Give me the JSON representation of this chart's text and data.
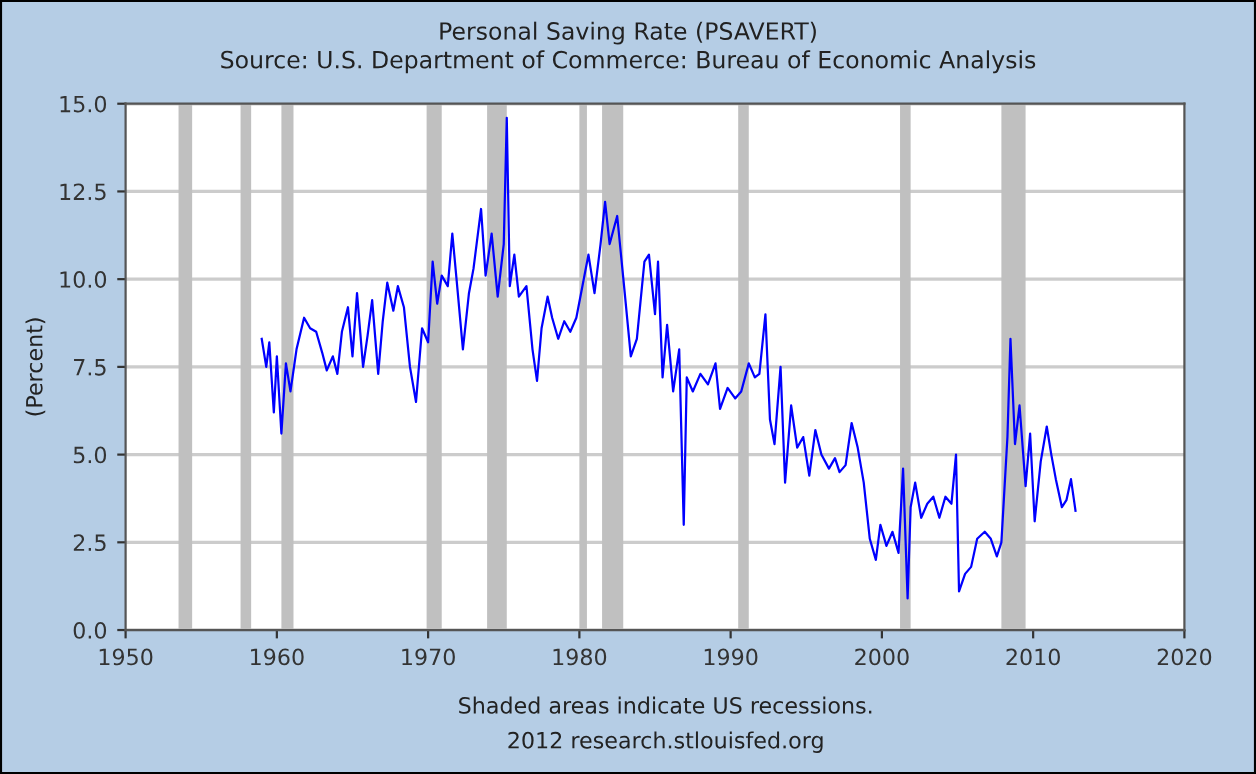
{
  "chart_data": {
    "type": "line",
    "title": "Personal Saving Rate (PSAVERT)",
    "subtitle": "Source: U.S. Department of Commerce: Bureau of Economic Analysis",
    "ylabel": "(Percent)",
    "annotations": [
      "Shaded areas indicate US recessions.",
      "2012 research.stlouisfed.org"
    ],
    "series": [
      {
        "color": "#0000ff",
        "x": [
          1959.0,
          1959.3,
          1959.5,
          1959.8,
          1960.0,
          1960.3,
          1960.6,
          1960.9,
          1961.3,
          1961.8,
          1962.2,
          1962.6,
          1963.0,
          1963.3,
          1963.7,
          1964.0,
          1964.3,
          1964.7,
          1965.0,
          1965.3,
          1965.7,
          1966.0,
          1966.3,
          1966.7,
          1967.0,
          1967.3,
          1967.7,
          1968.0,
          1968.4,
          1968.8,
          1969.2,
          1969.6,
          1970.0,
          1970.3,
          1970.6,
          1970.9,
          1971.3,
          1971.6,
          1971.9,
          1972.3,
          1972.7,
          1973.0,
          1973.5,
          1973.8,
          1974.2,
          1974.6,
          1975.0,
          1975.2,
          1975.4,
          1975.7,
          1976.0,
          1976.5,
          1976.9,
          1977.2,
          1977.5,
          1977.9,
          1978.2,
          1978.6,
          1979.0,
          1979.4,
          1979.8,
          1980.2,
          1980.6,
          1981.0,
          1981.4,
          1981.7,
          1982.0,
          1982.5,
          1983.0,
          1983.4,
          1983.8,
          1984.3,
          1984.6,
          1985.0,
          1985.2,
          1985.5,
          1985.8,
          1986.2,
          1986.6,
          1986.9,
          1987.1,
          1987.5,
          1988.0,
          1988.5,
          1989.0,
          1989.3,
          1989.8,
          1990.3,
          1990.7,
          1991.2,
          1991.6,
          1991.9,
          1992.3,
          1992.6,
          1992.9,
          1993.3,
          1993.6,
          1994.0,
          1994.4,
          1994.8,
          1995.2,
          1995.6,
          1996.0,
          1996.5,
          1996.9,
          1997.2,
          1997.6,
          1998.0,
          1998.4,
          1998.8,
          1999.2,
          1999.6,
          1999.9,
          2000.3,
          2000.7,
          2001.1,
          2001.4,
          2001.7,
          2001.9,
          2002.2,
          2002.6,
          2003.0,
          2003.4,
          2003.8,
          2004.2,
          2004.6,
          2004.9,
          2005.1,
          2005.5,
          2005.9,
          2006.3,
          2006.8,
          2007.2,
          2007.6,
          2007.9,
          2008.3,
          2008.5,
          2008.8,
          2009.1,
          2009.5,
          2009.8,
          2010.1,
          2010.5,
          2010.9,
          2011.2,
          2011.5,
          2011.9,
          2012.2,
          2012.5,
          2012.8
        ],
        "values": [
          8.3,
          7.5,
          8.2,
          6.2,
          7.8,
          5.6,
          7.6,
          6.8,
          8.0,
          8.9,
          8.6,
          8.5,
          7.9,
          7.4,
          7.8,
          7.3,
          8.5,
          9.2,
          7.8,
          9.6,
          7.5,
          8.4,
          9.4,
          7.3,
          8.8,
          9.9,
          9.1,
          9.8,
          9.2,
          7.5,
          6.5,
          8.6,
          8.2,
          10.5,
          9.3,
          10.1,
          9.8,
          11.3,
          9.9,
          8.0,
          9.6,
          10.3,
          12.0,
          10.1,
          11.3,
          9.5,
          11.0,
          14.6,
          9.8,
          10.7,
          9.5,
          9.8,
          8.0,
          7.1,
          8.6,
          9.5,
          8.9,
          8.3,
          8.8,
          8.5,
          8.9,
          9.8,
          10.7,
          9.6,
          11.0,
          12.2,
          11.0,
          11.8,
          9.6,
          7.8,
          8.3,
          10.5,
          10.7,
          9.0,
          10.5,
          7.2,
          8.7,
          6.8,
          8.0,
          3.0,
          7.2,
          6.8,
          7.3,
          7.0,
          7.6,
          6.3,
          6.9,
          6.6,
          6.8,
          7.6,
          7.2,
          7.3,
          9.0,
          6.0,
          5.3,
          7.5,
          4.2,
          6.4,
          5.2,
          5.5,
          4.4,
          5.7,
          5.0,
          4.6,
          4.9,
          4.5,
          4.7,
          5.9,
          5.2,
          4.2,
          2.6,
          2.0,
          3.0,
          2.4,
          2.8,
          2.2,
          4.6,
          0.9,
          3.5,
          4.2,
          3.2,
          3.6,
          3.8,
          3.2,
          3.8,
          3.6,
          5.0,
          1.1,
          1.6,
          1.8,
          2.6,
          2.8,
          2.6,
          2.1,
          2.5,
          5.5,
          8.3,
          5.3,
          6.4,
          4.1,
          5.6,
          3.1,
          4.8,
          5.8,
          5.0,
          4.3,
          3.5,
          3.7,
          4.3,
          3.4
        ]
      }
    ],
    "xlim": [
      1950,
      2020
    ],
    "xticks": [
      1950,
      1960,
      1970,
      1980,
      1990,
      2000,
      2010,
      2020
    ],
    "ylim": [
      0,
      15
    ],
    "yticks": [
      {
        "value": 0,
        "label": "0.0"
      },
      {
        "value": 2.5,
        "label": "2.5"
      },
      {
        "value": 5,
        "label": "5.0"
      },
      {
        "value": 7.5,
        "label": "7.5"
      },
      {
        "value": 10,
        "label": "10.0"
      },
      {
        "value": 12.5,
        "label": "12.5"
      },
      {
        "value": 15,
        "label": "15.0"
      }
    ],
    "bands": [
      {
        "axis": "x",
        "from": 1953.5,
        "to": 1954.4,
        "color": "#c0c0c0"
      },
      {
        "axis": "x",
        "from": 1957.6,
        "to": 1958.3,
        "color": "#c0c0c0"
      },
      {
        "axis": "x",
        "from": 1960.3,
        "to": 1961.1,
        "color": "#c0c0c0"
      },
      {
        "axis": "x",
        "from": 1969.9,
        "to": 1970.9,
        "color": "#c0c0c0"
      },
      {
        "axis": "x",
        "from": 1973.9,
        "to": 1975.2,
        "color": "#c0c0c0"
      },
      {
        "axis": "x",
        "from": 1980.0,
        "to": 1980.5,
        "color": "#c0c0c0"
      },
      {
        "axis": "x",
        "from": 1981.5,
        "to": 1982.9,
        "color": "#c0c0c0"
      },
      {
        "axis": "x",
        "from": 1990.5,
        "to": 1991.2,
        "color": "#c0c0c0"
      },
      {
        "axis": "x",
        "from": 2001.2,
        "to": 2001.9,
        "color": "#c0c0c0"
      },
      {
        "axis": "x",
        "from": 2007.9,
        "to": 2009.5,
        "color": "#c0c0c0"
      }
    ],
    "grid": "y",
    "marker": "none",
    "line_style": "solid"
  }
}
